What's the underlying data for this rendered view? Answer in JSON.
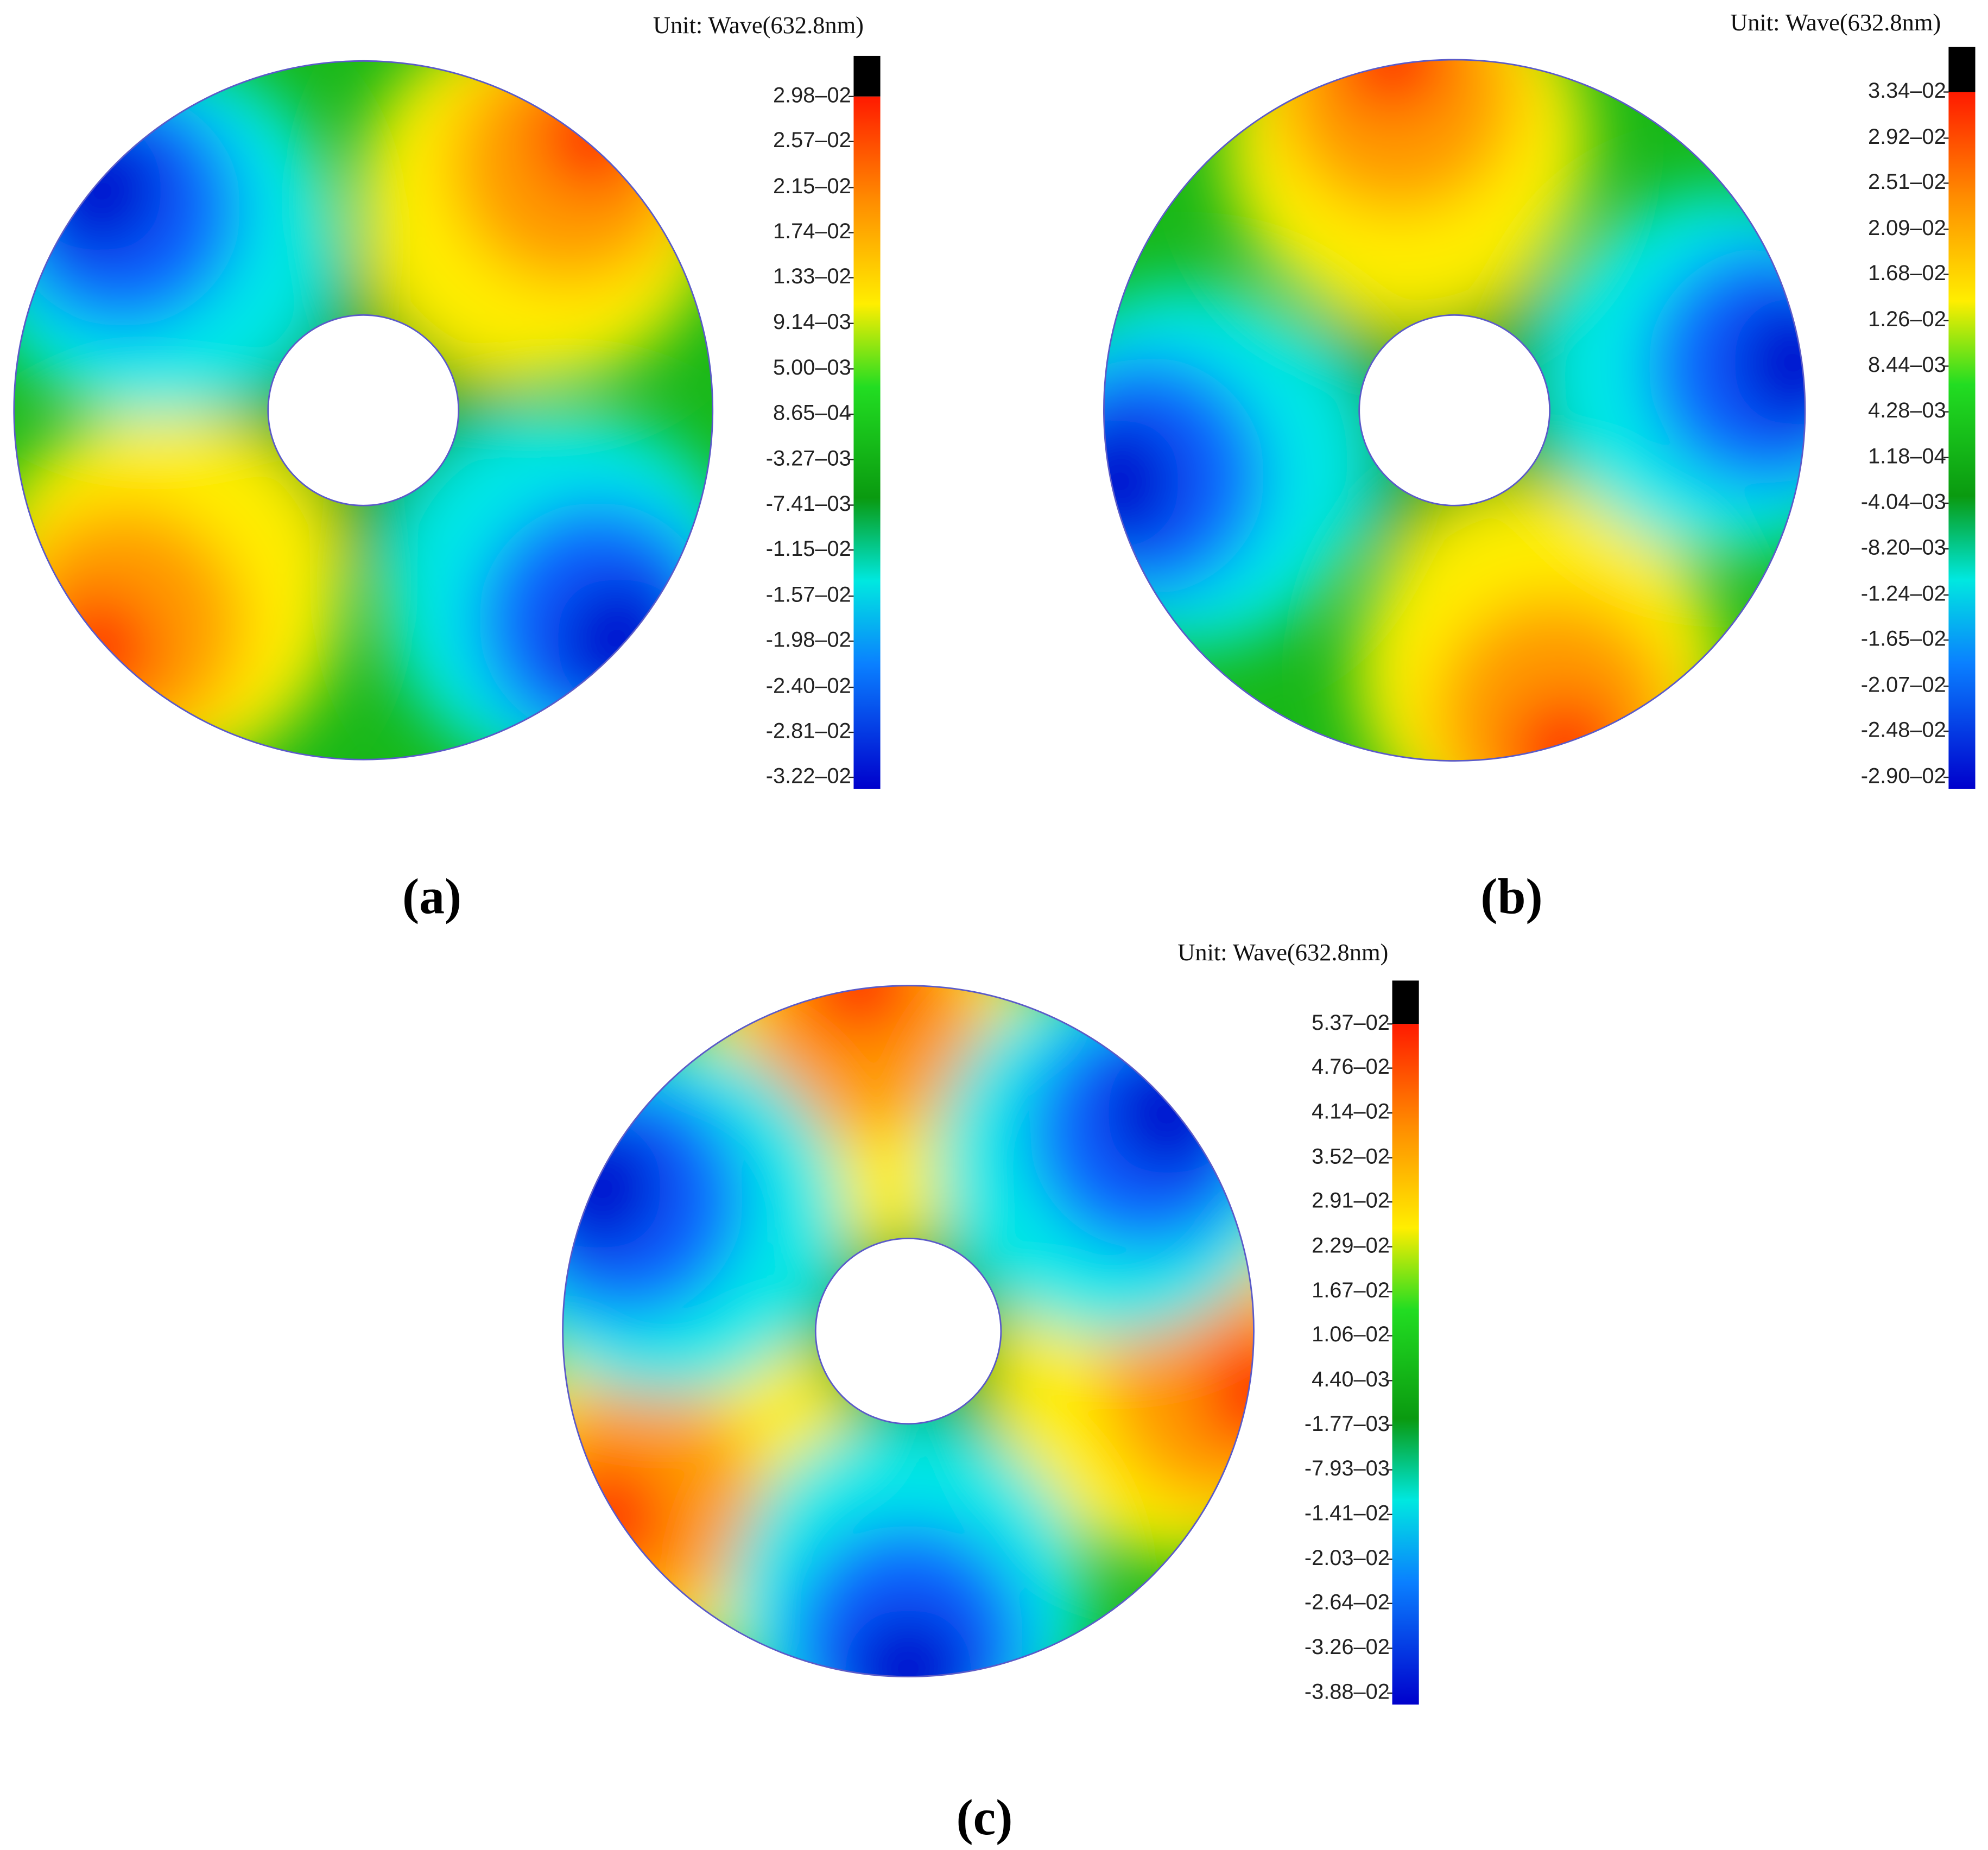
{
  "chart_data": [
    {
      "type": "contour",
      "colorbar_label": "Unit: Wave(632.8nm)",
      "panel_label": "(a)",
      "zlim": [
        -0.0322,
        0.0335
      ],
      "zticks": [
        {
          "value": 0.0298,
          "label": "2.98–02"
        },
        {
          "value": 0.0257,
          "label": "2.57–02"
        },
        {
          "value": 0.0215,
          "label": "2.15–02"
        },
        {
          "value": 0.0174,
          "label": "1.74–02"
        },
        {
          "value": 0.0133,
          "label": "1.33–02"
        },
        {
          "value": 0.00914,
          "label": "9.14–03"
        },
        {
          "value": 0.005,
          "label": "5.00–03"
        },
        {
          "value": 0.000865,
          "label": "8.65–04"
        },
        {
          "value": -0.00327,
          "label": "-3.27–03"
        },
        {
          "value": -0.00741,
          "label": "-7.41–03"
        },
        {
          "value": -0.0115,
          "label": "-1.15–02"
        },
        {
          "value": -0.0157,
          "label": "-1.57–02"
        },
        {
          "value": -0.0198,
          "label": "-1.98–02"
        },
        {
          "value": -0.024,
          "label": "-2.40–02"
        },
        {
          "value": -0.0281,
          "label": "-2.81–02"
        },
        {
          "value": -0.0322,
          "label": "-3.22–02"
        }
      ]
    },
    {
      "type": "contour",
      "colorbar_label": "Unit: Wave(632.8nm)",
      "panel_label": "(b)",
      "zlim": [
        -0.029,
        0.0375
      ],
      "zticks": [
        {
          "value": 0.0334,
          "label": "3.34–02"
        },
        {
          "value": 0.0292,
          "label": "2.92–02"
        },
        {
          "value": 0.0251,
          "label": "2.51–02"
        },
        {
          "value": 0.0209,
          "label": "2.09–02"
        },
        {
          "value": 0.0168,
          "label": "1.68–02"
        },
        {
          "value": 0.0126,
          "label": "1.26–02"
        },
        {
          "value": 0.00844,
          "label": "8.44–03"
        },
        {
          "value": 0.00428,
          "label": "4.28–03"
        },
        {
          "value": 0.000118,
          "label": "1.18–04"
        },
        {
          "value": -0.00404,
          "label": "-4.04–03"
        },
        {
          "value": -0.0082,
          "label": "-8.20–03"
        },
        {
          "value": -0.0124,
          "label": "-1.24–02"
        },
        {
          "value": -0.0165,
          "label": "-1.65–02"
        },
        {
          "value": -0.0207,
          "label": "-2.07–02"
        },
        {
          "value": -0.0248,
          "label": "-2.48–02"
        },
        {
          "value": -0.029,
          "label": "-2.90–02"
        }
      ]
    },
    {
      "type": "contour",
      "colorbar_label": "Unit: Wave(632.8nm)",
      "panel_label": "(c)",
      "zlim": [
        -0.0388,
        0.0597
      ],
      "zticks": [
        {
          "value": 0.0537,
          "label": "5.37–02"
        },
        {
          "value": 0.0476,
          "label": "4.76–02"
        },
        {
          "value": 0.0414,
          "label": "4.14–02"
        },
        {
          "value": 0.0352,
          "label": "3.52–02"
        },
        {
          "value": 0.0291,
          "label": "2.91–02"
        },
        {
          "value": 0.0229,
          "label": "2.29–02"
        },
        {
          "value": 0.0167,
          "label": "1.67–02"
        },
        {
          "value": 0.0106,
          "label": "1.06–02"
        },
        {
          "value": 0.0044,
          "label": "4.40–03"
        },
        {
          "value": -0.00177,
          "label": "-1.77–03"
        },
        {
          "value": -0.00793,
          "label": "-7.93–03"
        },
        {
          "value": -0.0141,
          "label": "-1.41–02"
        },
        {
          "value": -0.0203,
          "label": "-2.03–02"
        },
        {
          "value": -0.0264,
          "label": "-2.64–02"
        },
        {
          "value": -0.0326,
          "label": "-3.26–02"
        },
        {
          "value": -0.0388,
          "label": "-3.88–02"
        }
      ]
    }
  ]
}
